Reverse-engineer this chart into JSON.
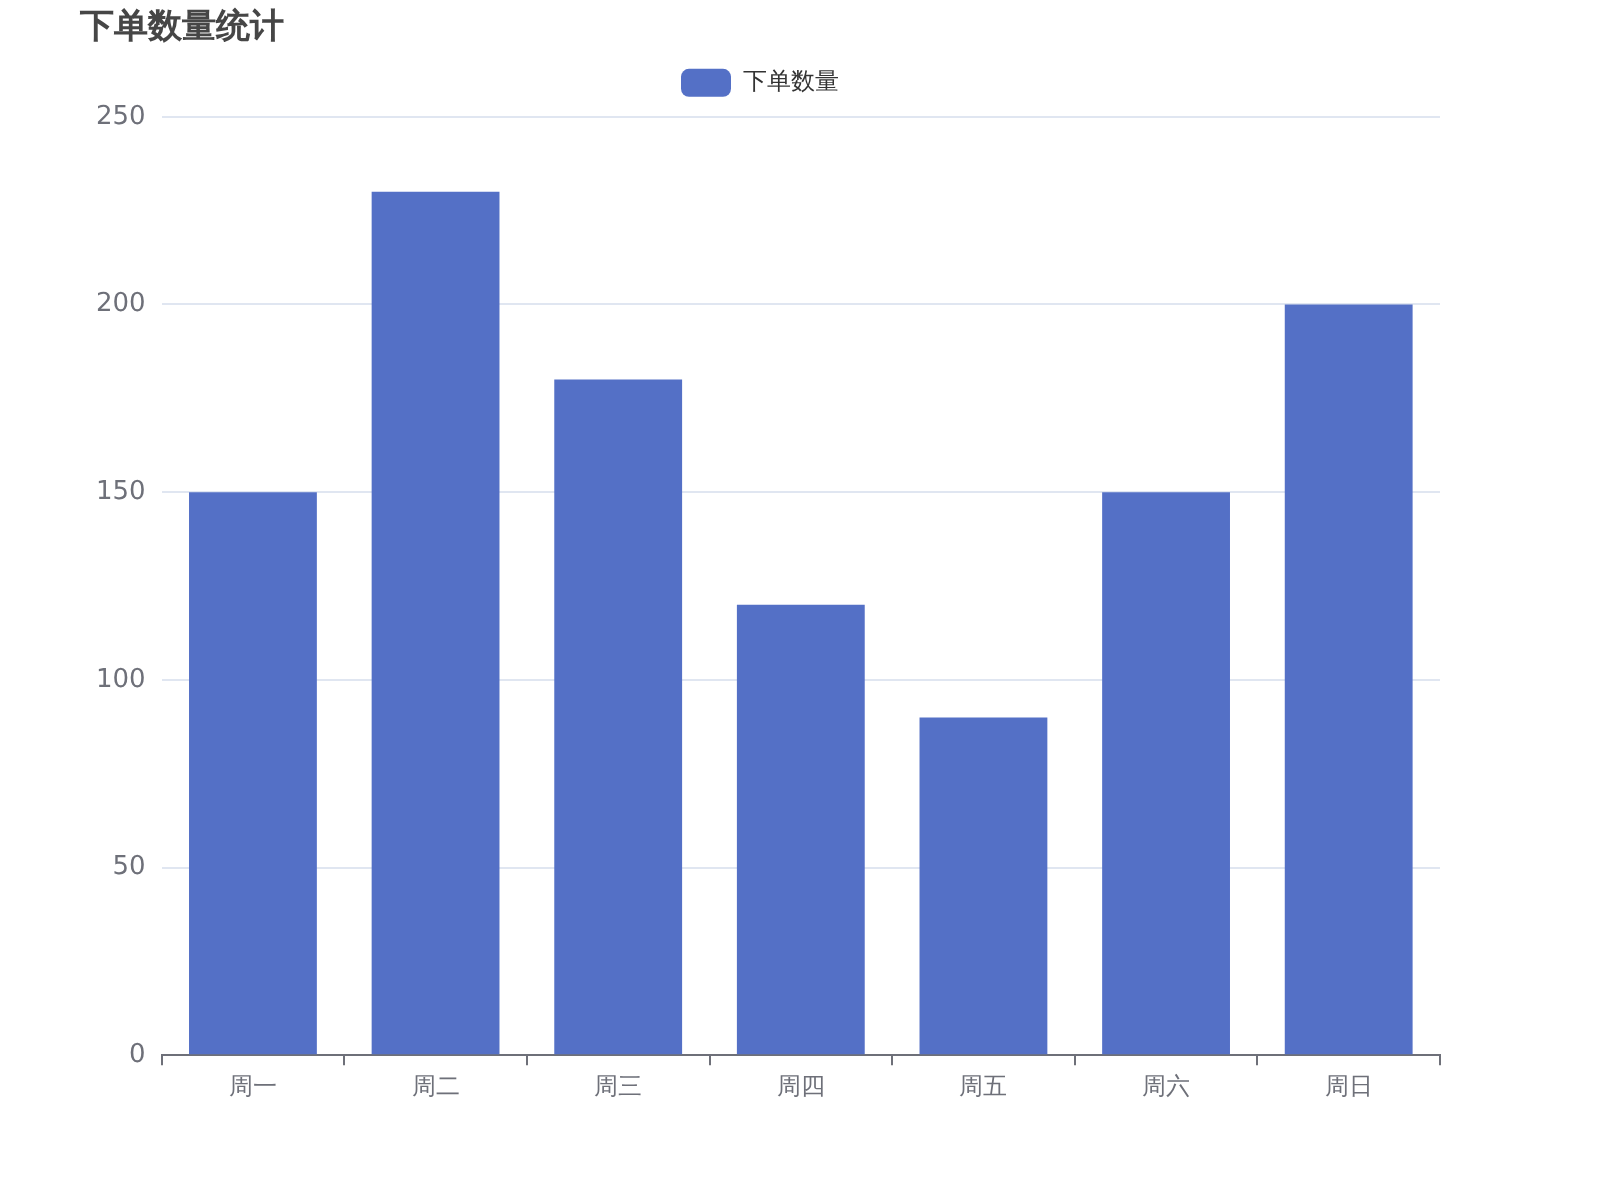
{
  "chart_data": {
    "type": "bar",
    "title": "下单数量统计",
    "categories": [
      "周一",
      "周二",
      "周三",
      "周四",
      "周五",
      "周六",
      "周日"
    ],
    "series": [
      {
        "name": "下单数量",
        "color": "#5470c6",
        "values": [
          150,
          230,
          180,
          120,
          90,
          150,
          200
        ]
      }
    ],
    "ylim": [
      0,
      250
    ],
    "yticks": [
      0,
      50,
      100,
      150,
      200,
      250
    ],
    "grid": "y",
    "legend": "top"
  }
}
